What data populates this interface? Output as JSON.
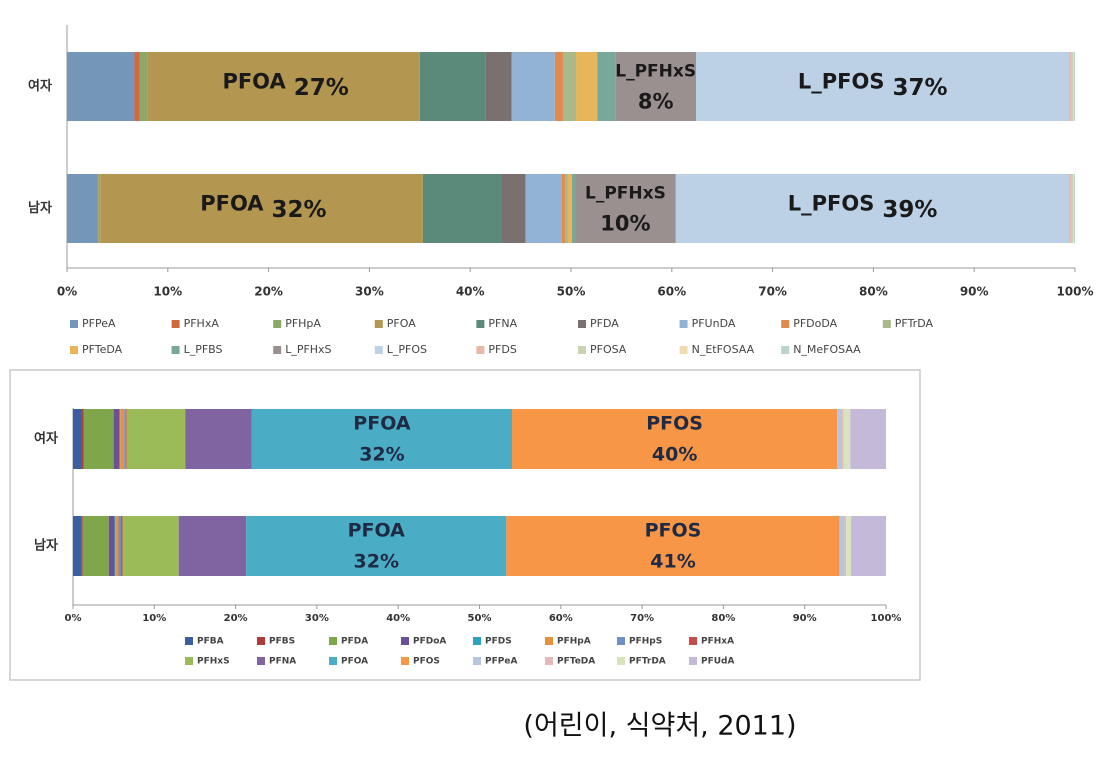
{
  "chart_data": [
    {
      "type": "stacked-bar",
      "orientation": "horizontal",
      "categories": [
        "여자",
        "남자"
      ],
      "xlim": [
        0,
        100
      ],
      "xticks": [
        {
          "value": 0,
          "label": "0%"
        },
        {
          "value": 10,
          "label": "10%"
        },
        {
          "value": 20,
          "label": "20%"
        },
        {
          "value": 30,
          "label": "30%"
        },
        {
          "value": 40,
          "label": "40%"
        },
        {
          "value": 50,
          "label": "50%"
        },
        {
          "value": 60,
          "label": "60%"
        },
        {
          "value": 70,
          "label": "70%"
        },
        {
          "value": 80,
          "label": "80%"
        },
        {
          "value": 90,
          "label": "90%"
        },
        {
          "value": 100,
          "label": "100%"
        }
      ],
      "legend": "bottom",
      "series": [
        {
          "name": "PFPeA",
          "color": "#7496b8",
          "values": [
            6.7,
            3.0
          ]
        },
        {
          "name": "PFHxA",
          "color": "#d06a3a",
          "values": [
            0.5,
            0.1
          ]
        },
        {
          "name": "PFHpA",
          "color": "#8da66a",
          "values": [
            0.8,
            0.2
          ]
        },
        {
          "name": "PFOA",
          "color": "#b39650",
          "values": [
            27,
            32
          ],
          "value_labels": [
            "27%",
            "32%"
          ]
        },
        {
          "name": "PFNA",
          "color": "#5b8a7a",
          "values": [
            6.5,
            7.8
          ]
        },
        {
          "name": "PFDA",
          "color": "#7a7070",
          "values": [
            2.6,
            2.4
          ]
        },
        {
          "name": "PFUnDA",
          "color": "#93b3d6",
          "values": [
            4.3,
            3.6
          ]
        },
        {
          "name": "PFDoDA",
          "color": "#e08a50",
          "values": [
            0.8,
            0.3
          ]
        },
        {
          "name": "PFTrDA",
          "color": "#a9b98a",
          "values": [
            1.3,
            0.3
          ]
        },
        {
          "name": "PFTeDA",
          "color": "#e7b65a",
          "values": [
            2.1,
            0.4
          ]
        },
        {
          "name": "L_PFBS",
          "color": "#77a89a",
          "values": [
            1.8,
            0.3
          ]
        },
        {
          "name": "L_PFHxS",
          "color": "#9a9090",
          "values": [
            8,
            10
          ],
          "value_labels": [
            "8%",
            "10%"
          ]
        },
        {
          "name": "L_PFOS",
          "color": "#bcd0e6",
          "values": [
            37,
            39
          ],
          "value_labels": [
            "37%",
            "39%"
          ]
        },
        {
          "name": "PFDS",
          "color": "#e8b8a8",
          "values": [
            0.2,
            0.2
          ]
        },
        {
          "name": "PFOSA",
          "color": "#c9d3b0",
          "values": [
            0.2,
            0.2
          ]
        },
        {
          "name": "N_EtFOSAA",
          "color": "#f0dcb0",
          "values": [
            0.1,
            0.1
          ]
        },
        {
          "name": "N_MeFOSAA",
          "color": "#b9d4cc",
          "values": [
            0.1,
            0.1
          ]
        }
      ]
    },
    {
      "type": "stacked-bar",
      "orientation": "horizontal",
      "categories": [
        "여자",
        "남자"
      ],
      "xlim": [
        0,
        100
      ],
      "xticks": [
        {
          "value": 0,
          "label": "0%"
        },
        {
          "value": 10,
          "label": "10%"
        },
        {
          "value": 20,
          "label": "20%"
        },
        {
          "value": 30,
          "label": "30%"
        },
        {
          "value": 40,
          "label": "40%"
        },
        {
          "value": 50,
          "label": "50%"
        },
        {
          "value": 60,
          "label": "60%"
        },
        {
          "value": 70,
          "label": "70%"
        },
        {
          "value": 80,
          "label": "80%"
        },
        {
          "value": 90,
          "label": "90%"
        },
        {
          "value": 100,
          "label": "100%"
        }
      ],
      "legend": "bottom",
      "series": [
        {
          "name": "PFBA",
          "color": "#3a5fa0",
          "values": [
            1.1,
            1.0
          ]
        },
        {
          "name": "PFBS",
          "color": "#b03a3a",
          "values": [
            0.2,
            0.2
          ]
        },
        {
          "name": "PFDA",
          "color": "#7fa64b",
          "values": [
            3.7,
            3.2
          ]
        },
        {
          "name": "PFDoA",
          "color": "#6a5096",
          "values": [
            0.7,
            0.7
          ]
        },
        {
          "name": "PFDS",
          "color": "#2fa2c1",
          "values": [
            0.1,
            0.1
          ]
        },
        {
          "name": "PFHpA",
          "color": "#e8913c",
          "values": [
            0.5,
            0.4
          ]
        },
        {
          "name": "PFHpS",
          "color": "#6f8fc9",
          "values": [
            0.2,
            0.3
          ]
        },
        {
          "name": "PFHxA",
          "color": "#c94c4c",
          "values": [
            0.1,
            0.2
          ]
        },
        {
          "name": "PFHxS",
          "color": "#9bbb59",
          "values": [
            7.2,
            6.9
          ]
        },
        {
          "name": "PFNA",
          "color": "#8064a2",
          "values": [
            8.2,
            8.3
          ]
        },
        {
          "name": "PFOA",
          "color": "#4bacc6",
          "values": [
            32,
            32
          ],
          "value_labels": [
            "32%",
            "32%"
          ]
        },
        {
          "name": "PFOS",
          "color": "#f79646",
          "values": [
            40,
            41
          ],
          "value_labels": [
            "40%",
            "41%"
          ]
        },
        {
          "name": "PFPeA",
          "color": "#b8c5de",
          "values": [
            0.6,
            0.6
          ]
        },
        {
          "name": "PFTeDA",
          "color": "#e6b9b8",
          "values": [
            0.2,
            0.2
          ]
        },
        {
          "name": "PFTrDA",
          "color": "#d7e4bd",
          "values": [
            0.8,
            0.6
          ]
        },
        {
          "name": "PFUdA",
          "color": "#c5b9d9",
          "values": [
            4.4,
            4.3
          ]
        }
      ]
    }
  ],
  "caption": "(어린이, 식약처, 2011)"
}
